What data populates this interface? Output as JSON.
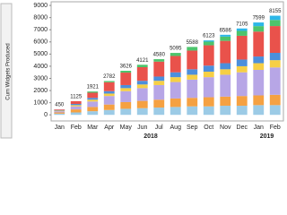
{
  "chart_data": {
    "type": "stacked-bar",
    "y_label": "Cum Widgets Produced",
    "categories": [
      "Jan",
      "Feb",
      "Mar",
      "Apr",
      "May",
      "Jun",
      "Jul",
      "Aug",
      "Sep",
      "Oct",
      "Nov",
      "Dec",
      "Jan",
      "Feb"
    ],
    "year_labels": [
      "2018",
      "2019"
    ],
    "series": [
      {
        "color": "#9ccbe6",
        "values": [
          100,
          200,
          300,
          400,
          500,
          550,
          600,
          650,
          700,
          700,
          750,
          750,
          800,
          800
        ]
      },
      {
        "color": "#f5a142",
        "values": [
          100,
          250,
          350,
          450,
          550,
          600,
          650,
          700,
          700,
          750,
          750,
          800,
          800,
          850
        ]
      },
      {
        "color": "#b7a6e6",
        "values": [
          100,
          250,
          450,
          700,
          900,
          1050,
          1200,
          1350,
          1500,
          1650,
          1800,
          1950,
          2100,
          2250
        ]
      },
      {
        "color": "#f6cf45",
        "values": [
          50,
          100,
          150,
          200,
          250,
          300,
          350,
          400,
          400,
          450,
          450,
          500,
          550,
          600
        ]
      },
      {
        "color": "#4c8fdc",
        "values": [
          50,
          100,
          150,
          200,
          250,
          300,
          350,
          400,
          450,
          500,
          500,
          550,
          550,
          600
        ]
      },
      {
        "color": "#e9524b",
        "values": [
          50,
          225,
          421,
          732,
          1026,
          1121,
          1230,
          1345,
          1538,
          1673,
          1836,
          1955,
          2049,
          2205
        ]
      },
      {
        "color": "#4dc46c",
        "values": [
          0,
          0,
          100,
          100,
          150,
          200,
          200,
          250,
          300,
          300,
          350,
          400,
          450,
          500
        ]
      },
      {
        "color": "#2cb7e8",
        "values": [
          0,
          0,
          0,
          0,
          0,
          0,
          0,
          0,
          0,
          100,
          150,
          200,
          300,
          350
        ]
      }
    ],
    "totals": [
      450,
      1125,
      1921,
      2782,
      3626,
      4121,
      4580,
      5095,
      5588,
      6123,
      6586,
      7105,
      7599,
      8155
    ],
    "ylim": [
      -500,
      9300
    ],
    "yticks": [
      0,
      1000,
      2000,
      3000,
      4000,
      5000,
      6000,
      7000,
      8000,
      9000
    ]
  }
}
